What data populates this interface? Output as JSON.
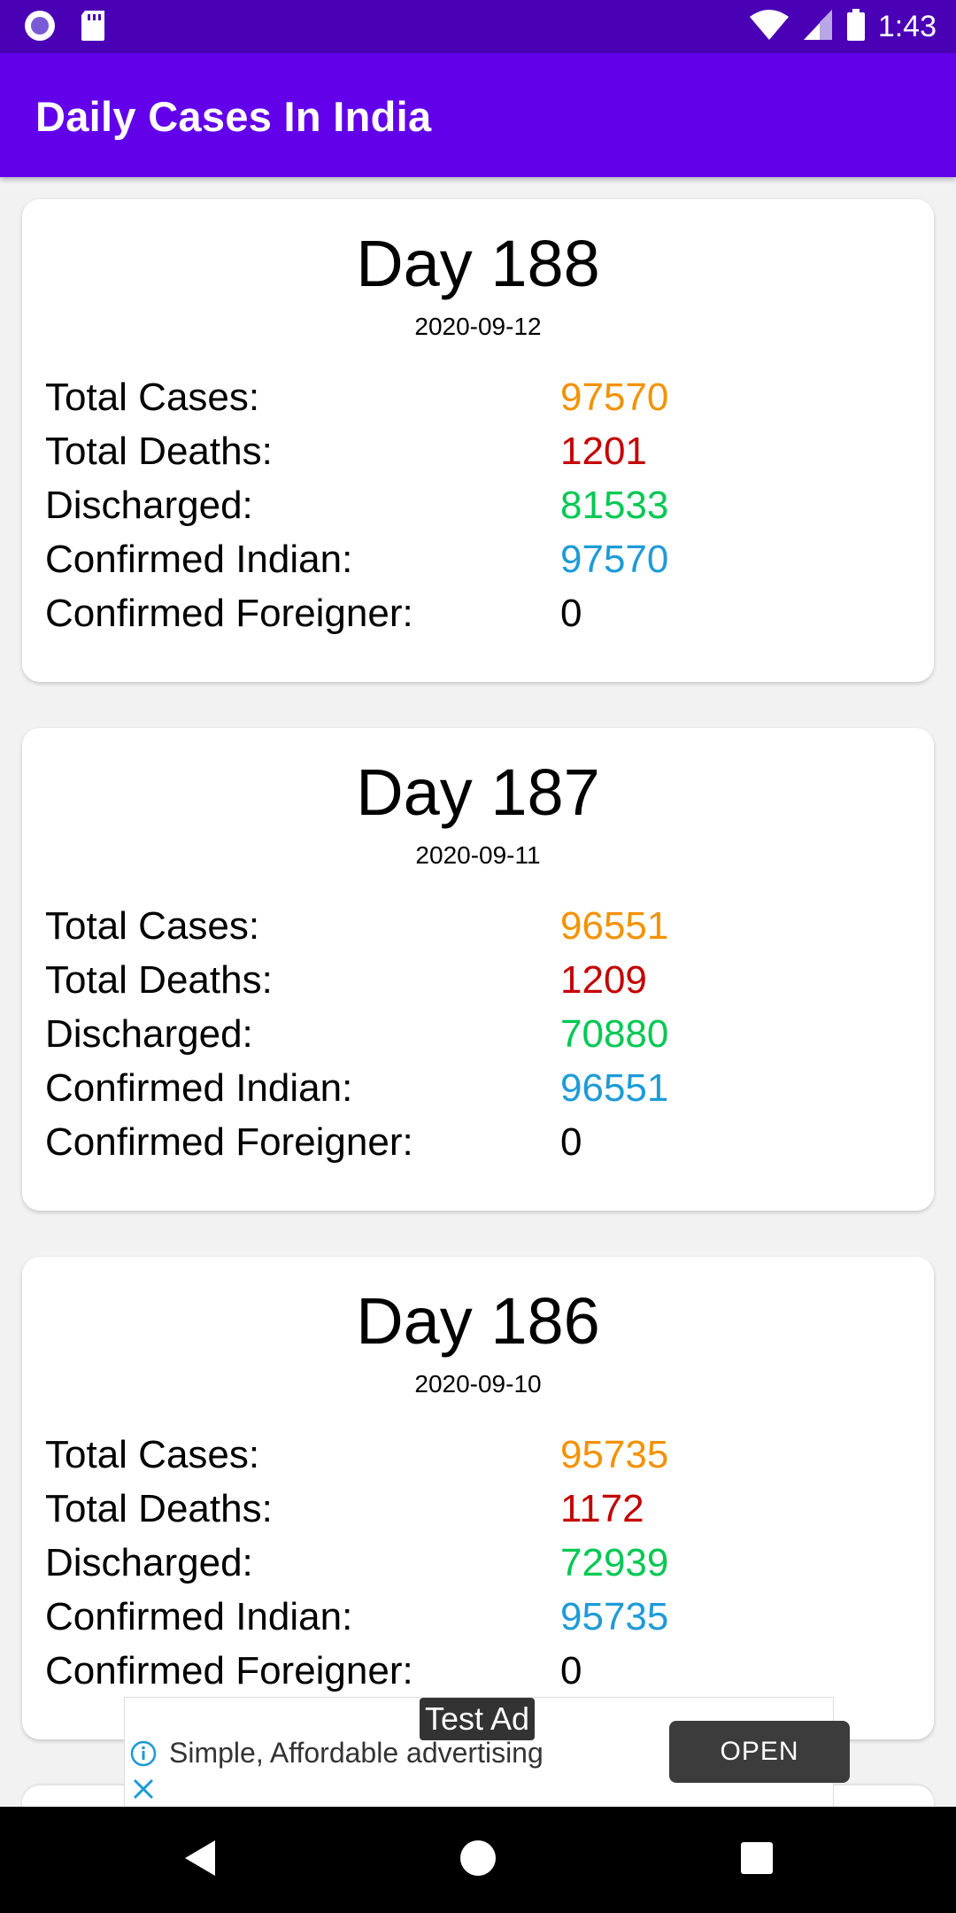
{
  "status_bar": {
    "time": "1:43",
    "icons": [
      "record-icon",
      "sd-card-icon",
      "wifi-icon",
      "signal-icon",
      "battery-icon"
    ]
  },
  "app_bar": {
    "title": "Daily Cases In India",
    "background": "#6200ea"
  },
  "colors": {
    "total_cases": "#f39200",
    "total_deaths": "#c30000",
    "discharged": "#00c853",
    "confirmed_indian": "#1e9bd7",
    "confirmed_foreigner": "#000000"
  },
  "labels": {
    "total_cases": "Total Cases:",
    "total_deaths": "Total Deaths:",
    "discharged": "Discharged:",
    "confirmed_indian": "Confirmed Indian:",
    "confirmed_foreigner": "Confirmed Foreigner:"
  },
  "cards": [
    {
      "title": "Day 188",
      "date": "2020-09-12",
      "total_cases": "97570",
      "total_deaths": "1201",
      "discharged": "81533",
      "confirmed_indian": "97570",
      "confirmed_foreigner": "0"
    },
    {
      "title": "Day 187",
      "date": "2020-09-11",
      "total_cases": "96551",
      "total_deaths": "1209",
      "discharged": "70880",
      "confirmed_indian": "96551",
      "confirmed_foreigner": "0"
    },
    {
      "title": "Day 186",
      "date": "2020-09-10",
      "total_cases": "95735",
      "total_deaths": "1172",
      "discharged": "72939",
      "confirmed_indian": "95735",
      "confirmed_foreigner": "0"
    }
  ],
  "ad": {
    "tag": "Test Ad",
    "text": "Simple, Affordable advertising",
    "cta": "OPEN"
  },
  "nav": {
    "icons": [
      "back-icon",
      "home-icon",
      "recents-icon"
    ]
  }
}
